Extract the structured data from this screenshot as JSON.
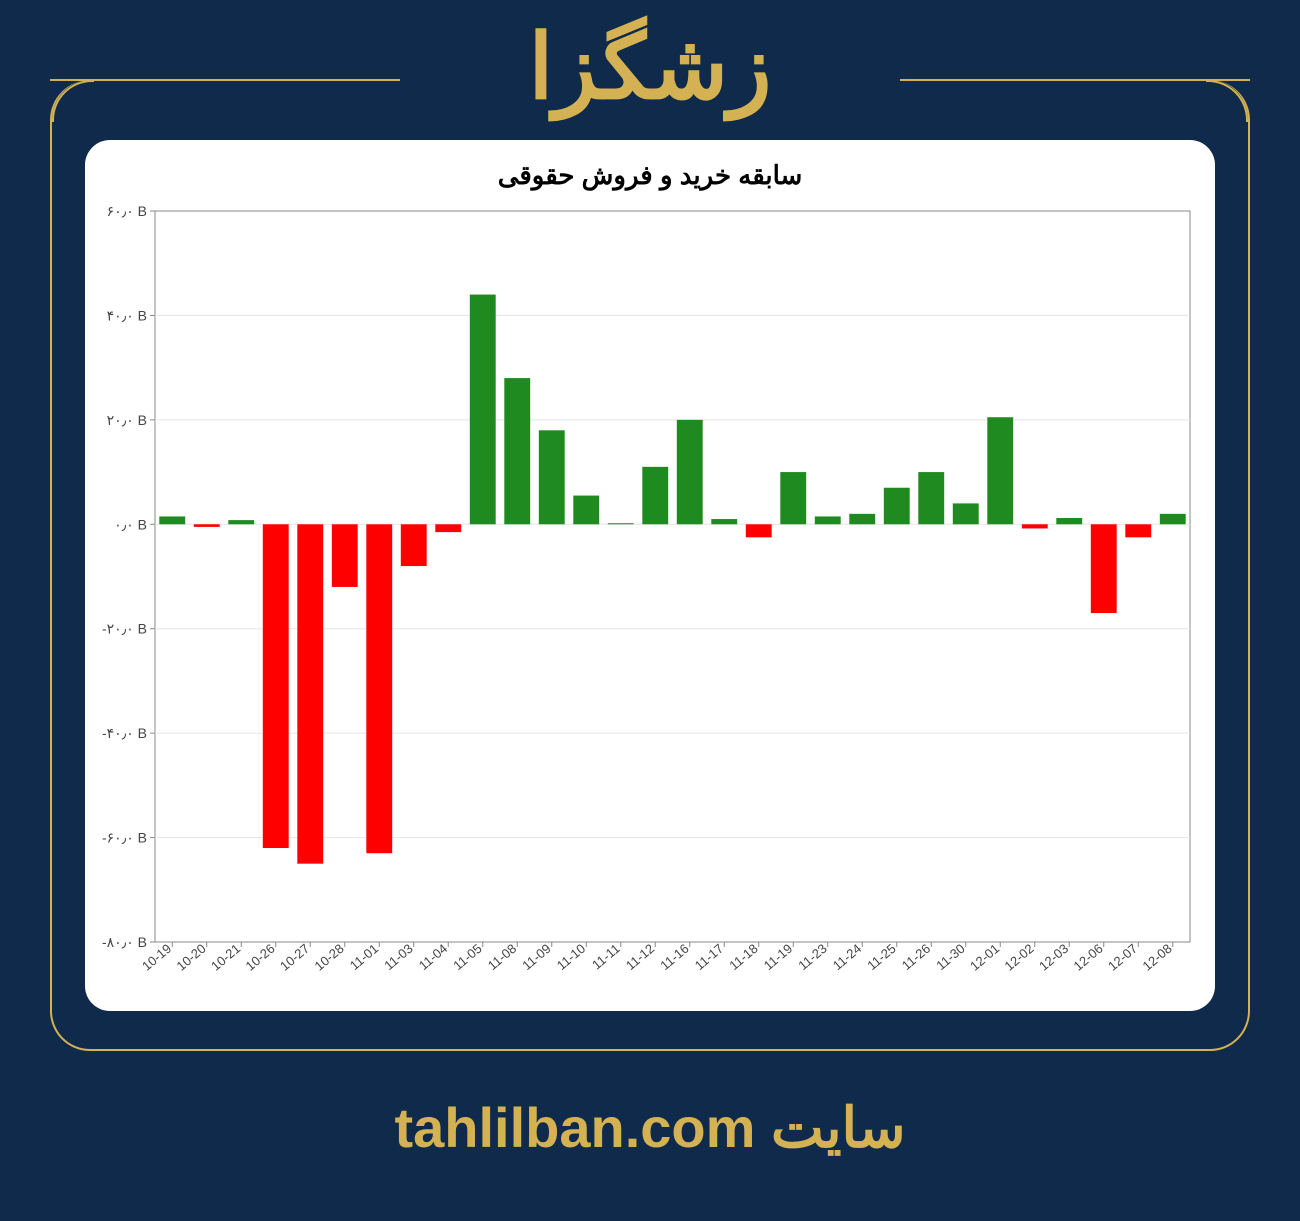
{
  "header": {
    "title": "زشگزا"
  },
  "footer": {
    "label_site": "سایت",
    "url_text": "tahlilban.com"
  },
  "chart": {
    "type": "bar",
    "title": "سابقه خرید و فروش حقوقی",
    "title_fontsize": 26,
    "background_color": "#ffffff",
    "grid_color": "#e5e5e5",
    "border_color": "#888888",
    "positive_color": "#1f8a1f",
    "negative_color": "#ff0000",
    "bar_width": 0.75,
    "ylim": [
      -80,
      60
    ],
    "ytick_step": 20,
    "y_suffix": " B",
    "y_labels_persian": [
      "۶۰٫۰",
      "۴۰٫۰",
      "۲۰٫۰",
      "۰٫۰",
      "-۲۰٫۰",
      "-۴۰٫۰",
      "-۶۰٫۰",
      "-۸۰٫۰"
    ],
    "y_label_values": [
      60,
      40,
      20,
      0,
      -20,
      -40,
      -60,
      -80
    ],
    "categories": [
      "10-19",
      "10-20",
      "10-21",
      "10-26",
      "10-27",
      "10-28",
      "11-01",
      "11-03",
      "11-04",
      "11-05",
      "11-08",
      "11-09",
      "11-10",
      "11-11",
      "11-12",
      "11-16",
      "11-17",
      "11-18",
      "11-19",
      "11-23",
      "11-24",
      "11-25",
      "11-26",
      "11-30",
      "12-01",
      "12-02",
      "12-03",
      "12-06",
      "12-07",
      "12-08"
    ],
    "values": [
      1.5,
      -0.5,
      0.8,
      -62,
      -65,
      -12,
      -63,
      -8,
      -1.5,
      44,
      28,
      18,
      5.5,
      0.2,
      11,
      20,
      1,
      -2.5,
      10,
      1.5,
      2,
      7,
      10,
      4,
      20.5,
      -0.8,
      1.2,
      -17,
      -2.5,
      2
    ]
  },
  "style": {
    "page_bg": "#0f2a4a",
    "accent": "#d4b254"
  }
}
